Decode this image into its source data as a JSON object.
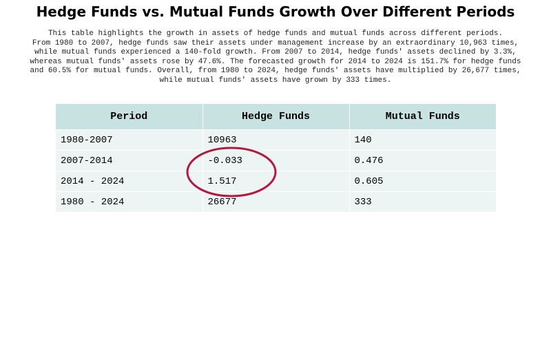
{
  "title": "Hedge Funds vs. Mutual Funds Growth Over Different Periods",
  "description": [
    "This table highlights the growth in assets of hedge funds and mutual funds across different periods.",
    "From 1980 to 2007, hedge funds saw their assets under management increase by an extraordinary 10,963 times,",
    "while mutual funds experienced a 140-fold growth. From 2007 to 2014, hedge funds' assets declined by 3.3%,",
    "whereas mutual funds' assets rose by 47.6%. The forecasted growth for 2014 to 2024 is 151.7% for hedge funds",
    "and 60.5% for mutual funds. Overall, from 1980 to 2024, hedge funds' assets have multiplied by 26,677 times,",
    "while mutual funds' assets have grown by 333 times."
  ],
  "colors": {
    "header_bg": "#c8e2e2",
    "cell_bg": "#edf4f4",
    "annotation": "#b5173e"
  },
  "chart_data": {
    "type": "table",
    "title": "Hedge Funds vs. Mutual Funds Growth Over Different Periods",
    "columns": [
      "Period",
      "Hedge Funds",
      "Mutual Funds"
    ],
    "rows": [
      [
        "1980-2007",
        "10963",
        "140"
      ],
      [
        "2007-2014",
        "-0.033",
        "0.476"
      ],
      [
        "2014 - 2024",
        "1.517",
        "0.605"
      ],
      [
        "1980 - 2024",
        "26677",
        "333"
      ]
    ]
  }
}
